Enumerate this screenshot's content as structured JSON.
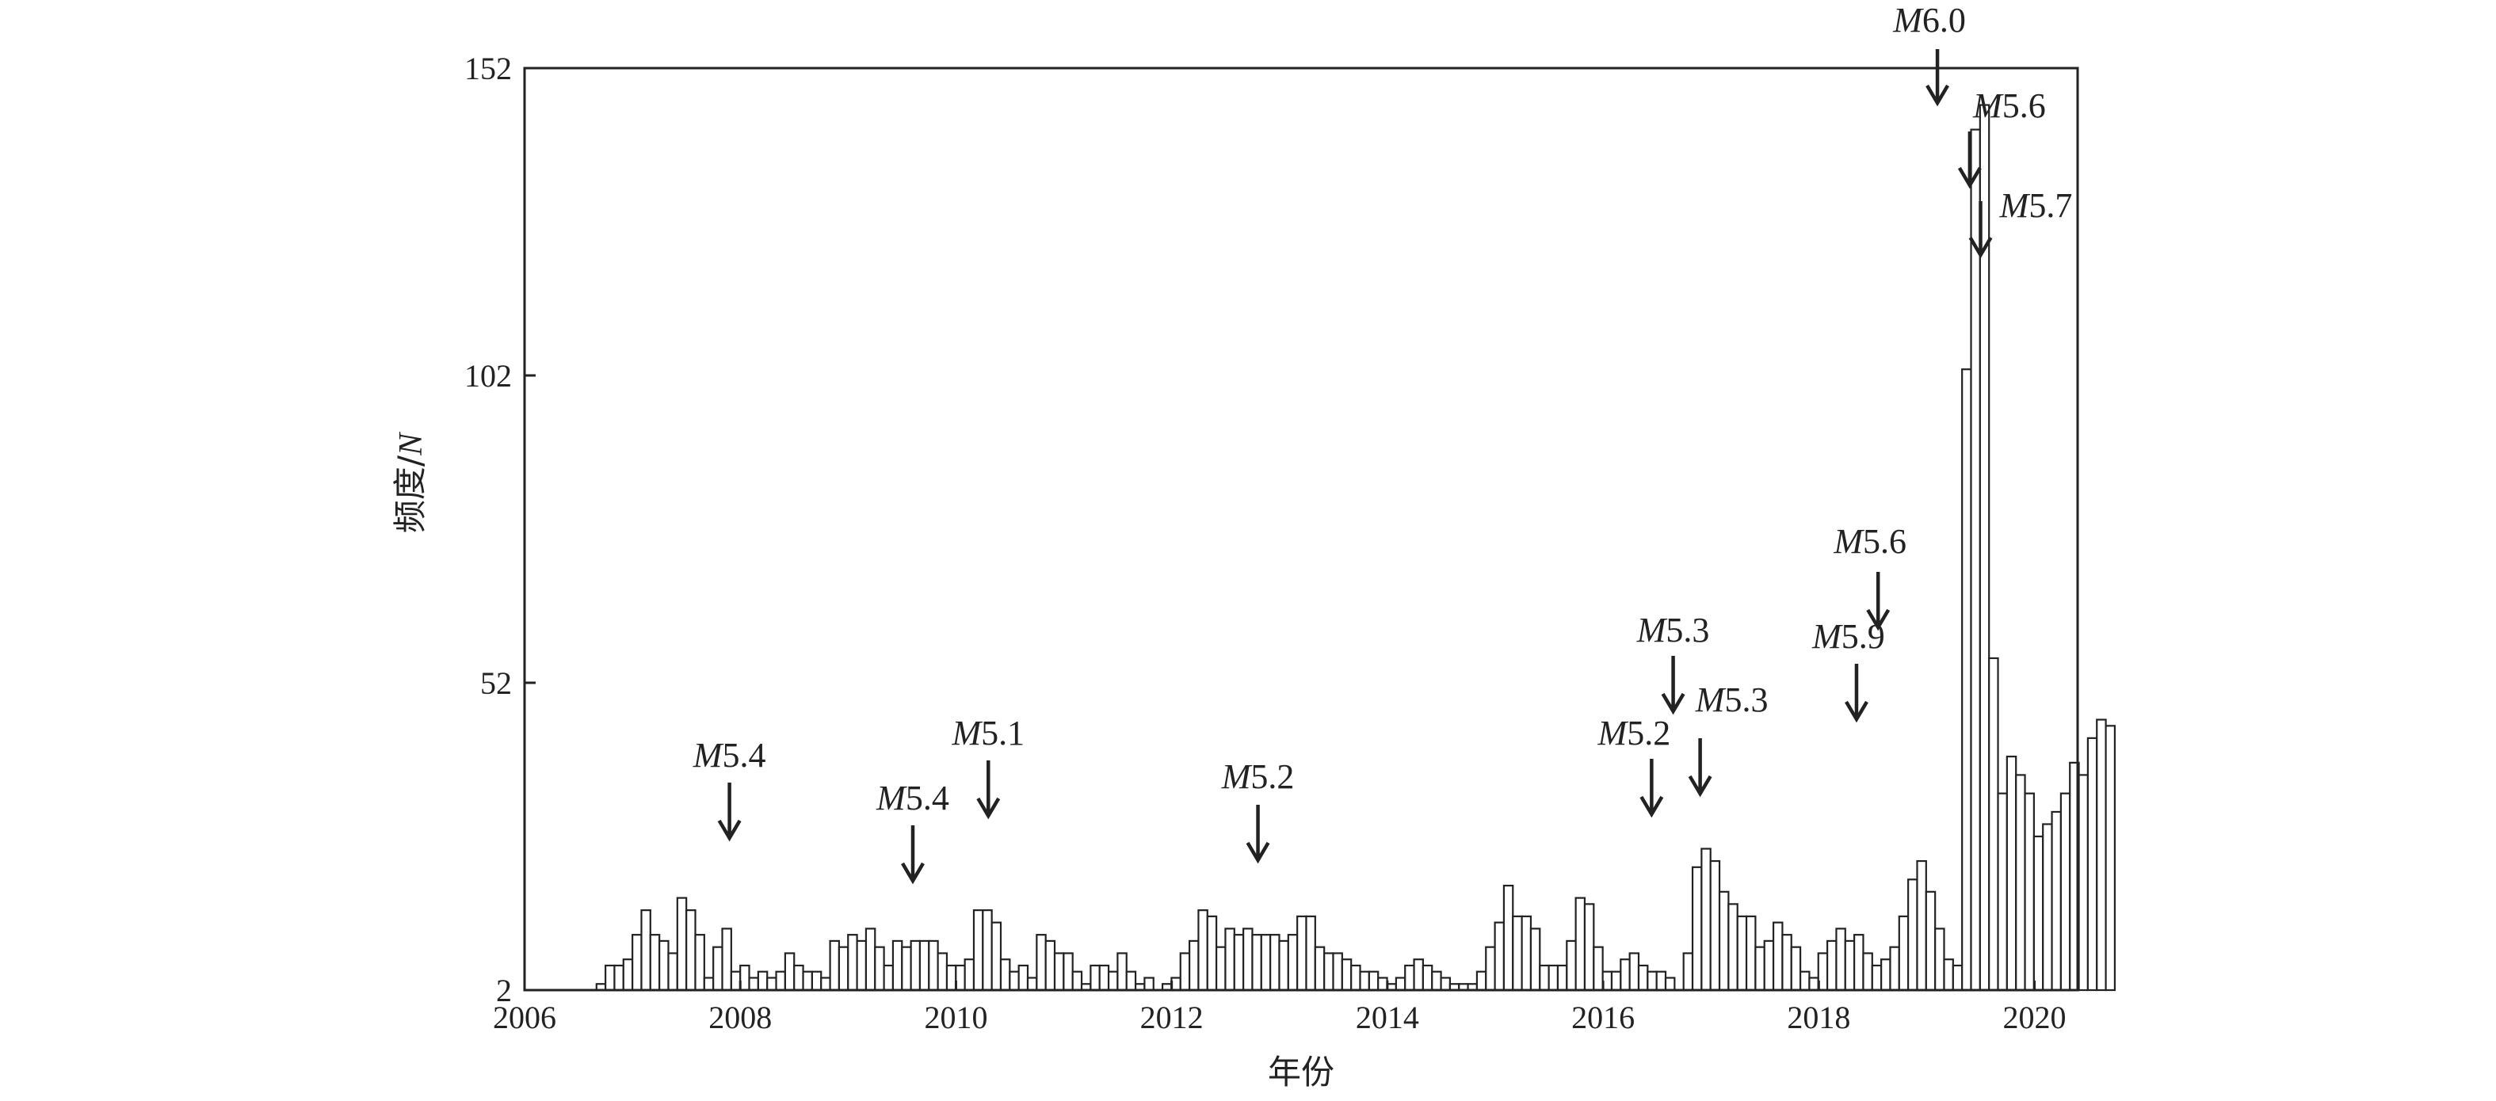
{
  "chart_data": {
    "type": "bar",
    "xlabel": "年份",
    "ylabel_text": "频度/",
    "ylabel_var": "N",
    "xlim": [
      2006,
      2020.4
    ],
    "ylim": [
      2,
      152
    ],
    "x_ticks": [
      2006,
      2008,
      2010,
      2012,
      2014,
      2016,
      2018,
      2020
    ],
    "y_ticks": [
      2,
      52,
      102,
      152
    ],
    "series": [
      {
        "start_year": 2006.667,
        "bin_width_years": 0.0833,
        "values": [
          3,
          6,
          6,
          7,
          11,
          15,
          11,
          10,
          8,
          17,
          15,
          11,
          4,
          9,
          12,
          5,
          6,
          4,
          5,
          4,
          5,
          8,
          6,
          5,
          5,
          4,
          10,
          9,
          11,
          10,
          12,
          9,
          6,
          10,
          9,
          10,
          10,
          10,
          8,
          6,
          6,
          7,
          15,
          15,
          13,
          7,
          5,
          6,
          4,
          11,
          10,
          8,
          8,
          5,
          3,
          6,
          6,
          5,
          8,
          5,
          3,
          4,
          2,
          3,
          4,
          8,
          10,
          15,
          14,
          9,
          12,
          11,
          12,
          11,
          11,
          11,
          10,
          11,
          14,
          14,
          9,
          8,
          8,
          7,
          6,
          5,
          5,
          4,
          3,
          4,
          6,
          7,
          6,
          5,
          4,
          3,
          3,
          3,
          5,
          9,
          13,
          19,
          14,
          14,
          12,
          6,
          6,
          6,
          10,
          17,
          16,
          9,
          5,
          5,
          7,
          8,
          6,
          5,
          5,
          4,
          2,
          8,
          22,
          25,
          23,
          18,
          16,
          14,
          14,
          9,
          10,
          13,
          11,
          9,
          5,
          4,
          8,
          10,
          12,
          10,
          11,
          8,
          6,
          7,
          9,
          14,
          20,
          23,
          18,
          12,
          7,
          6,
          103,
          142,
          146,
          56,
          34,
          40,
          37,
          34,
          27,
          29,
          31,
          34,
          39,
          37,
          43,
          46,
          45
        ]
      }
    ],
    "annotations": [
      {
        "prefix": "M",
        "value": "5.4",
        "x": 2007.9
      },
      {
        "prefix": "M",
        "value": "5.4",
        "x": 2009.6
      },
      {
        "prefix": "M",
        "value": "5.1",
        "x": 2010.3
      },
      {
        "prefix": "M",
        "value": "5.2",
        "x": 2012.8
      },
      {
        "prefix": "M",
        "value": "5.2",
        "x": 2016.45
      },
      {
        "prefix": "M",
        "value": "5.3",
        "x": 2016.65
      },
      {
        "prefix": "M",
        "value": "5.3",
        "x": 2016.9
      },
      {
        "prefix": "M",
        "value": "5.9",
        "x": 2018.35
      },
      {
        "prefix": "M",
        "value": "5.6",
        "x": 2018.55
      },
      {
        "prefix": "M",
        "value": "6.0",
        "x": 2019.1
      },
      {
        "prefix": "M",
        "value": "5.6",
        "x": 2019.4
      },
      {
        "prefix": "M",
        "value": "5.7",
        "x": 2019.5
      }
    ]
  }
}
